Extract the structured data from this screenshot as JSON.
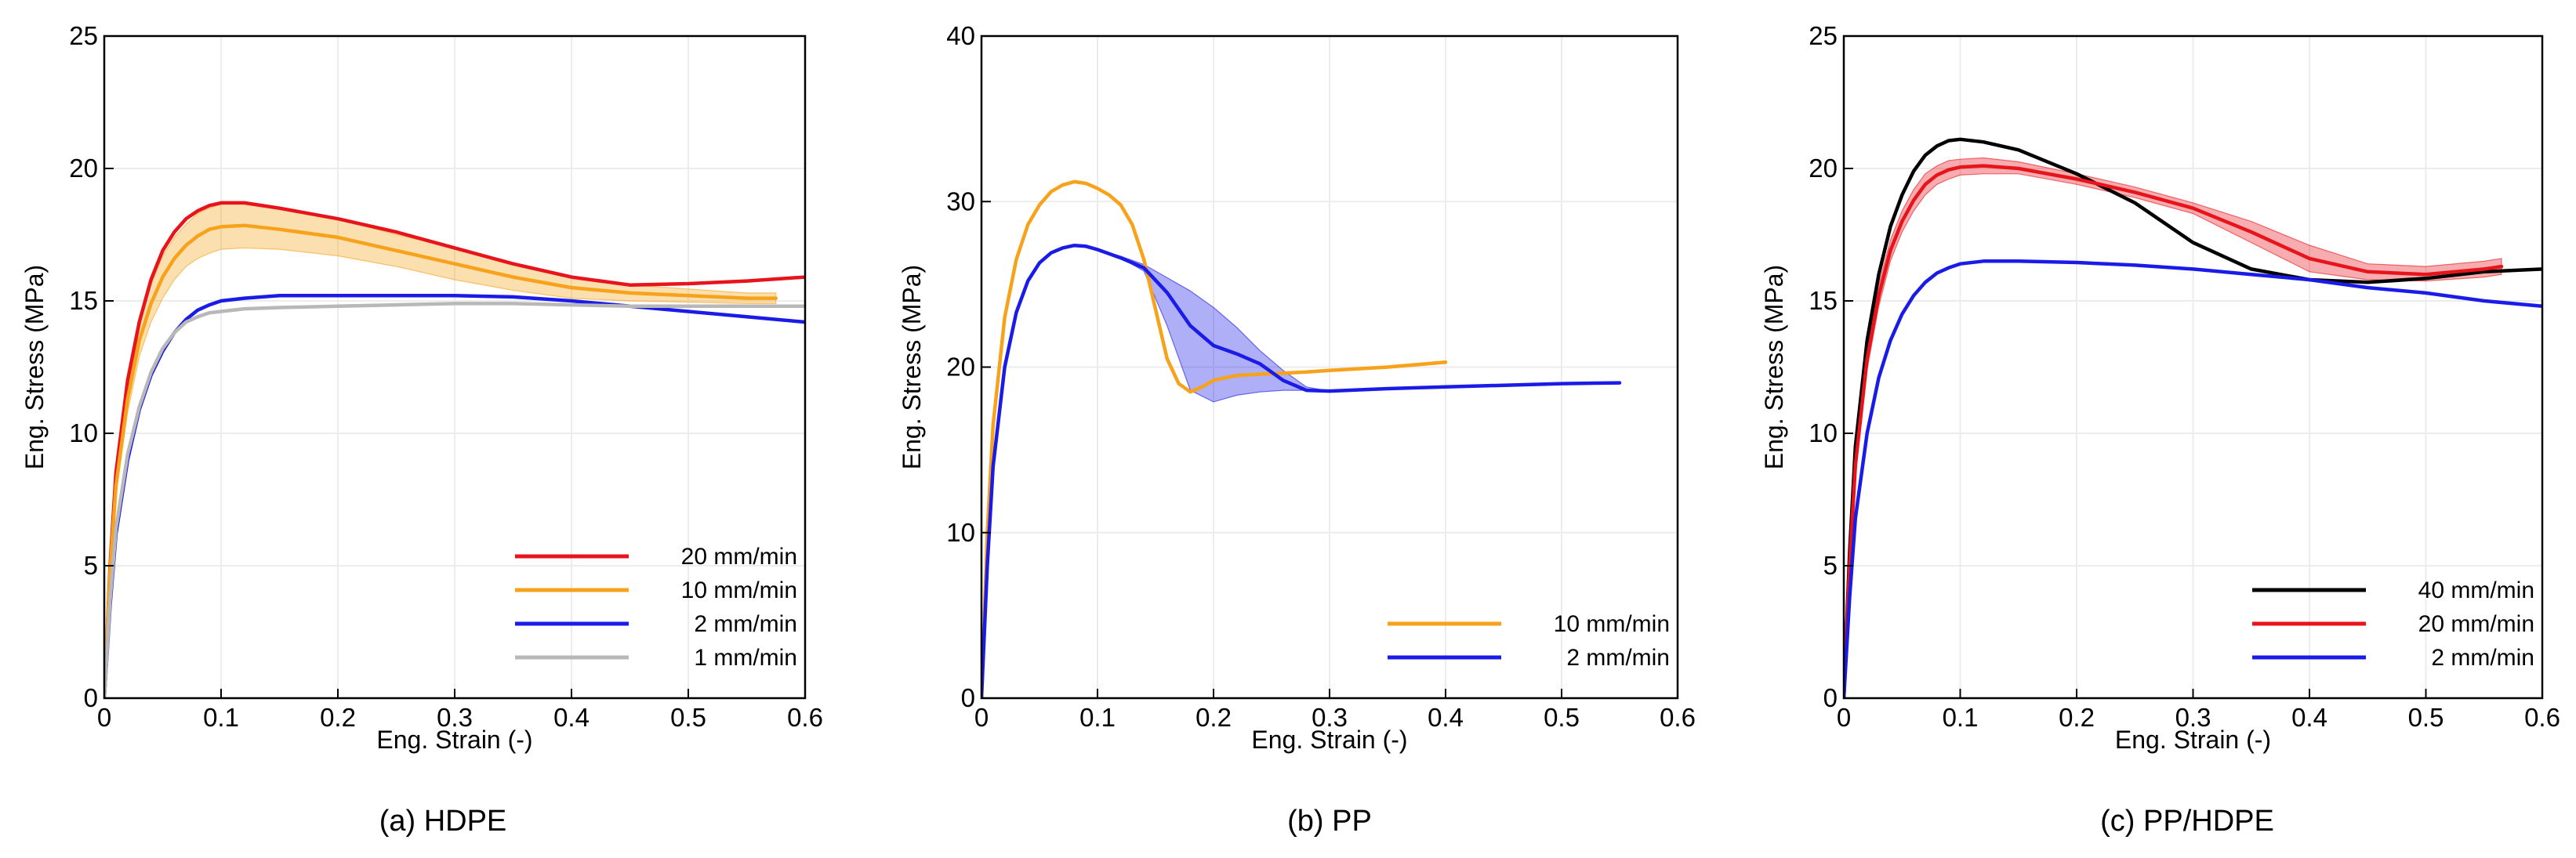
{
  "chart_data": [
    {
      "type": "line",
      "caption": "(a) HDPE",
      "xlabel": "Eng. Strain (-)",
      "ylabel": "Eng. Stress (MPa)",
      "xlim": [
        0,
        0.6
      ],
      "ylim": [
        0,
        25
      ],
      "xticks": [
        "0",
        "0.1",
        "0.2",
        "0.3",
        "0.4",
        "0.5",
        "0.6"
      ],
      "yticks": [
        "0",
        "5",
        "10",
        "15",
        "20",
        "25"
      ],
      "grid": true,
      "legend_position": "bottom-right",
      "series": [
        {
          "name": "20 mm/min",
          "color": "#e8141b",
          "x": [
            0,
            0.005,
            0.01,
            0.02,
            0.03,
            0.04,
            0.05,
            0.06,
            0.07,
            0.08,
            0.09,
            0.1,
            0.12,
            0.15,
            0.2,
            0.25,
            0.3,
            0.35,
            0.4,
            0.45,
            0.5,
            0.55,
            0.6
          ],
          "y": [
            0,
            5,
            8.5,
            12,
            14.2,
            15.8,
            16.9,
            17.6,
            18.1,
            18.4,
            18.6,
            18.7,
            18.7,
            18.5,
            18.1,
            17.6,
            17.0,
            16.4,
            15.9,
            15.6,
            15.65,
            15.75,
            15.9
          ]
        },
        {
          "name": "10 mm/min",
          "color": "#f7a21b",
          "x": [
            0,
            0.005,
            0.01,
            0.02,
            0.03,
            0.04,
            0.05,
            0.06,
            0.07,
            0.08,
            0.09,
            0.1,
            0.12,
            0.15,
            0.2,
            0.25,
            0.3,
            0.35,
            0.4,
            0.45,
            0.5,
            0.55,
            0.575
          ],
          "y": [
            0,
            4.8,
            8,
            11.3,
            13.5,
            14.9,
            15.9,
            16.6,
            17.1,
            17.45,
            17.7,
            17.8,
            17.85,
            17.7,
            17.4,
            16.9,
            16.4,
            15.9,
            15.5,
            15.3,
            15.2,
            15.1,
            15.1
          ],
          "band_lower": [
            0,
            4.6,
            7.7,
            10.8,
            12.9,
            14.2,
            15.1,
            15.8,
            16.3,
            16.6,
            16.8,
            16.95,
            17.0,
            16.95,
            16.7,
            16.3,
            15.8,
            15.4,
            15.1,
            15.0,
            14.95,
            14.9,
            14.9
          ],
          "band_upper": [
            0,
            5.0,
            8.3,
            11.8,
            14.1,
            15.6,
            16.7,
            17.4,
            17.9,
            18.3,
            18.5,
            18.65,
            18.7,
            18.5,
            18.1,
            17.5,
            17.0,
            16.4,
            15.9,
            15.6,
            15.45,
            15.3,
            15.3
          ]
        },
        {
          "name": "2 mm/min",
          "color": "#1b1be8",
          "x": [
            0,
            0.005,
            0.01,
            0.02,
            0.03,
            0.04,
            0.05,
            0.06,
            0.07,
            0.08,
            0.09,
            0.1,
            0.12,
            0.15,
            0.2,
            0.25,
            0.3,
            0.35,
            0.4,
            0.45,
            0.5,
            0.55,
            0.6
          ],
          "y": [
            0,
            3.5,
            6.2,
            9.0,
            10.9,
            12.2,
            13.1,
            13.8,
            14.3,
            14.65,
            14.85,
            15.0,
            15.1,
            15.2,
            15.2,
            15.2,
            15.2,
            15.15,
            15.0,
            14.8,
            14.6,
            14.4,
            14.2
          ]
        },
        {
          "name": "1 mm/min",
          "color": "#b8b8b8",
          "x": [
            0,
            0.005,
            0.01,
            0.02,
            0.03,
            0.04,
            0.05,
            0.06,
            0.07,
            0.08,
            0.09,
            0.1,
            0.12,
            0.15,
            0.2,
            0.25,
            0.3,
            0.35,
            0.4,
            0.45,
            0.5,
            0.55,
            0.6
          ],
          "y": [
            0,
            3.7,
            6.4,
            9.2,
            11.0,
            12.3,
            13.2,
            13.8,
            14.2,
            14.4,
            14.55,
            14.6,
            14.7,
            14.75,
            14.8,
            14.85,
            14.9,
            14.9,
            14.85,
            14.8,
            14.8,
            14.8,
            14.8
          ]
        }
      ]
    },
    {
      "type": "line",
      "caption": "(b) PP",
      "xlabel": "Eng. Strain (-)",
      "ylabel": "Eng. Stress (MPa)",
      "xlim": [
        0,
        0.6
      ],
      "ylim": [
        0,
        40
      ],
      "xticks": [
        "0",
        "0.1",
        "0.2",
        "0.3",
        "0.4",
        "0.5",
        "0.6"
      ],
      "yticks": [
        "0",
        "10",
        "20",
        "30",
        "40"
      ],
      "grid": true,
      "legend_position": "bottom-right",
      "series": [
        {
          "name": "10 mm/min",
          "color": "#f7a21b",
          "x": [
            0,
            0.005,
            0.01,
            0.02,
            0.03,
            0.04,
            0.05,
            0.06,
            0.07,
            0.08,
            0.09,
            0.1,
            0.11,
            0.12,
            0.13,
            0.14,
            0.15,
            0.16,
            0.17,
            0.18,
            0.19,
            0.2,
            0.22,
            0.25,
            0.28,
            0.3,
            0.35,
            0.4
          ],
          "y": [
            0,
            10,
            16.5,
            23,
            26.5,
            28.6,
            29.8,
            30.6,
            31.0,
            31.2,
            31.1,
            30.8,
            30.4,
            29.8,
            28.6,
            26.5,
            23.5,
            20.5,
            19.0,
            18.5,
            18.8,
            19.2,
            19.5,
            19.6,
            19.7,
            19.8,
            20.0,
            20.3
          ]
        },
        {
          "name": "2 mm/min",
          "color": "#1b1be8",
          "x": [
            0,
            0.005,
            0.01,
            0.02,
            0.03,
            0.04,
            0.05,
            0.06,
            0.07,
            0.08,
            0.09,
            0.1,
            0.12,
            0.14,
            0.16,
            0.18,
            0.2,
            0.22,
            0.24,
            0.26,
            0.28,
            0.3,
            0.35,
            0.4,
            0.45,
            0.5,
            0.55
          ],
          "y": [
            0,
            8,
            14,
            20,
            23.3,
            25.2,
            26.3,
            26.9,
            27.2,
            27.35,
            27.3,
            27.1,
            26.6,
            26.0,
            24.5,
            22.5,
            21.3,
            20.8,
            20.2,
            19.2,
            18.6,
            18.55,
            18.7,
            18.8,
            18.9,
            19.0,
            19.05
          ],
          "band_lower": [
            0,
            8,
            14,
            20,
            23.3,
            25.2,
            26.3,
            26.9,
            27.2,
            27.35,
            27.3,
            27.1,
            26.6,
            25.8,
            22.5,
            18.6,
            17.9,
            18.3,
            18.5,
            18.6,
            18.6,
            18.55,
            18.7,
            18.8,
            18.9,
            19.0,
            19.05
          ],
          "band_upper": [
            0,
            8,
            14,
            20,
            23.3,
            25.2,
            26.3,
            26.9,
            27.2,
            27.35,
            27.3,
            27.1,
            26.7,
            26.2,
            25.4,
            24.6,
            23.6,
            22.4,
            21.0,
            19.8,
            18.8,
            18.55,
            18.7,
            18.8,
            18.9,
            19.0,
            19.05
          ]
        }
      ]
    },
    {
      "type": "line",
      "caption": "(c) PP/HDPE",
      "xlabel": "Eng. Strain (-)",
      "ylabel": "Eng. Stress (MPa)",
      "xlim": [
        0,
        0.6
      ],
      "ylim": [
        0,
        25
      ],
      "xticks": [
        "0",
        "0.1",
        "0.2",
        "0.3",
        "0.4",
        "0.5",
        "0.6"
      ],
      "yticks": [
        "0",
        "5",
        "10",
        "15",
        "20",
        "25"
      ],
      "grid": true,
      "legend_position": "bottom-right",
      "series": [
        {
          "name": "40 mm/min",
          "color": "#000000",
          "x": [
            0,
            0.005,
            0.01,
            0.02,
            0.03,
            0.04,
            0.05,
            0.06,
            0.07,
            0.08,
            0.09,
            0.1,
            0.12,
            0.15,
            0.2,
            0.25,
            0.3,
            0.35,
            0.4,
            0.45,
            0.5,
            0.55,
            0.6
          ],
          "y": [
            0,
            5.5,
            9.5,
            13.5,
            16,
            17.8,
            19.0,
            19.9,
            20.5,
            20.85,
            21.05,
            21.1,
            21.0,
            20.7,
            19.8,
            18.7,
            17.2,
            16.2,
            15.8,
            15.7,
            15.85,
            16.1,
            16.2
          ]
        },
        {
          "name": "20 mm/min",
          "color": "#e8141b",
          "x": [
            0,
            0.005,
            0.01,
            0.02,
            0.03,
            0.04,
            0.05,
            0.06,
            0.07,
            0.08,
            0.09,
            0.1,
            0.12,
            0.15,
            0.2,
            0.25,
            0.3,
            0.35,
            0.4,
            0.45,
            0.5,
            0.55,
            0.565
          ],
          "y": [
            0,
            5,
            8.8,
            12.8,
            15.2,
            16.9,
            18.0,
            18.8,
            19.4,
            19.75,
            19.95,
            20.05,
            20.1,
            20.0,
            19.6,
            19.1,
            18.5,
            17.6,
            16.6,
            16.1,
            16.0,
            16.2,
            16.3
          ],
          "band_lower": [
            0,
            4.8,
            8.5,
            12.4,
            14.8,
            16.5,
            17.6,
            18.4,
            19.0,
            19.4,
            19.6,
            19.75,
            19.8,
            19.8,
            19.4,
            18.9,
            18.3,
            17.2,
            16.1,
            15.8,
            15.75,
            15.9,
            16.0
          ],
          "band_upper": [
            0,
            5.2,
            9.1,
            13.2,
            15.6,
            17.3,
            18.4,
            19.2,
            19.8,
            20.1,
            20.3,
            20.35,
            20.4,
            20.25,
            19.8,
            19.3,
            18.7,
            18.0,
            17.1,
            16.4,
            16.3,
            16.5,
            16.6
          ]
        },
        {
          "name": "2 mm/min",
          "color": "#1b1be8",
          "x": [
            0,
            0.005,
            0.01,
            0.02,
            0.03,
            0.04,
            0.05,
            0.06,
            0.07,
            0.08,
            0.09,
            0.1,
            0.12,
            0.15,
            0.2,
            0.25,
            0.3,
            0.35,
            0.4,
            0.45,
            0.5,
            0.55,
            0.6
          ],
          "y": [
            0,
            3.8,
            6.8,
            10,
            12.1,
            13.5,
            14.5,
            15.2,
            15.7,
            16.05,
            16.25,
            16.4,
            16.5,
            16.5,
            16.45,
            16.35,
            16.2,
            16.0,
            15.8,
            15.5,
            15.3,
            15.0,
            14.8
          ]
        }
      ]
    }
  ]
}
